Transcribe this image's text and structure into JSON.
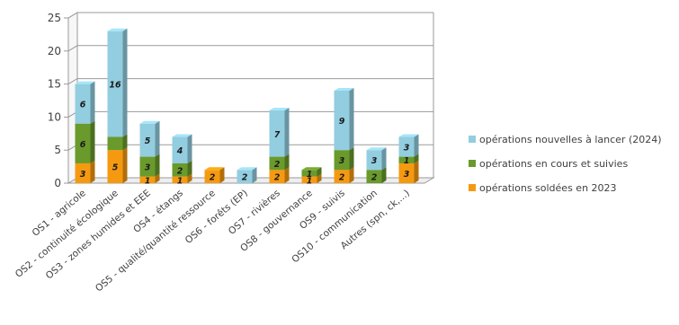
{
  "chart_data": {
    "type": "bar",
    "stacked": true,
    "three_d": true,
    "categories": [
      "OS1 - agricole",
      "OS2 - continuité écologique",
      "OS3 - zones humides et EEE",
      "OS4 - étangs",
      "OS5 - qualité/quantité ressource",
      "OS6 - forêts (EP)",
      "OS7 - rivières",
      "OS8 - gouvernance",
      "OS9 - suivis",
      "OS10 - communication",
      "Autres (spn, ck,...)"
    ],
    "series": [
      {
        "name": "opérations soldées en 2023",
        "color": "#f59a10",
        "values": [
          3,
          5,
          1,
          1,
          2,
          0,
          2,
          1,
          2,
          0,
          3
        ],
        "labels": [
          "3",
          "5",
          "1",
          "1",
          "2",
          "",
          "2",
          "1",
          "2",
          "",
          "3"
        ]
      },
      {
        "name": "opérations en cours et suivies",
        "color": "#6a9a2c",
        "values": [
          6,
          2,
          3,
          2,
          0,
          0,
          2,
          1,
          3,
          2,
          1
        ],
        "labels": [
          "6",
          "",
          "3",
          "2",
          "",
          "",
          "2",
          "1",
          "3",
          "2",
          "1"
        ]
      },
      {
        "name": "opérations nouvelles à lancer (2024)",
        "color": "#93cde0",
        "values": [
          6,
          16,
          5,
          4,
          0,
          2,
          7,
          0,
          9,
          3,
          3
        ],
        "labels": [
          "6",
          "16",
          "5",
          "4",
          "",
          "2",
          "7",
          "",
          "9",
          "3",
          "3"
        ]
      }
    ],
    "yticks": [
      "0",
      "5",
      "10",
      "15",
      "20",
      "25"
    ],
    "ylim": [
      0,
      25
    ],
    "grid": true,
    "legend_position": "right"
  }
}
